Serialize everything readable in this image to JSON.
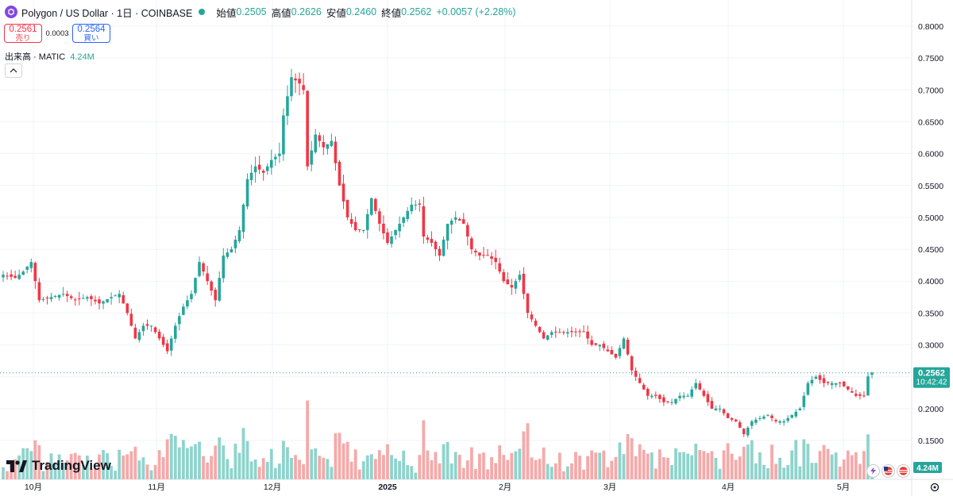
{
  "header": {
    "symbol": "Polygon / US Dollar · 1日 · COINBASE",
    "open_label": "始値",
    "open": "0.2505",
    "high_label": "高値",
    "high": "0.2626",
    "low_label": "安値",
    "low": "0.2460",
    "close_label": "終値",
    "close": "0.2562",
    "change": "+0.0057 (+2.28%)"
  },
  "trade": {
    "sell_price": "0.2561",
    "sell_label": "売り",
    "spread": "0.0003",
    "buy_price": "0.2564",
    "buy_label": "買い"
  },
  "volume_legend": {
    "label": "出来高 · MATIC",
    "value": "4.24M"
  },
  "last_price_tag": {
    "price": "0.2562",
    "countdown": "10:42:42"
  },
  "volume_tag": "4.24M",
  "logo_text": "TradingView",
  "colors": {
    "up": "#26a69a",
    "down": "#f23645",
    "vol_up": "#8fd3cc",
    "vol_down": "#f5a9a9",
    "grid": "#f0f3fa"
  },
  "chart_data": {
    "type": "candlestick",
    "timeframe": "1D",
    "y_axis": {
      "ticks": [
        "0.8000",
        "0.7500",
        "0.7000",
        "0.6500",
        "0.6000",
        "0.5500",
        "0.5000",
        "0.4500",
        "0.4000",
        "0.3500",
        "0.3000",
        "0.2500",
        "0.2000",
        "0.1500"
      ],
      "range": [
        0.13,
        0.81
      ],
      "position": "right"
    },
    "x_axis": {
      "labels": [
        "10月",
        "11月",
        "12月",
        "2025",
        "2月",
        "3月",
        "4月",
        "5月"
      ]
    },
    "price_path": [
      [
        0,
        0.41
      ],
      [
        3,
        0.405
      ],
      [
        5,
        0.415
      ],
      [
        7,
        0.43
      ],
      [
        9,
        0.37
      ],
      [
        12,
        0.375
      ],
      [
        15,
        0.38
      ],
      [
        18,
        0.37
      ],
      [
        21,
        0.375
      ],
      [
        24,
        0.365
      ],
      [
        27,
        0.375
      ],
      [
        29,
        0.38
      ],
      [
        31,
        0.35
      ],
      [
        33,
        0.31
      ],
      [
        35,
        0.33
      ],
      [
        37,
        0.33
      ],
      [
        39,
        0.31
      ],
      [
        41,
        0.29
      ],
      [
        43,
        0.33
      ],
      [
        45,
        0.36
      ],
      [
        47,
        0.38
      ],
      [
        49,
        0.43
      ],
      [
        51,
        0.4
      ],
      [
        53,
        0.37
      ],
      [
        55,
        0.44
      ],
      [
        57,
        0.45
      ],
      [
        59,
        0.48
      ],
      [
        61,
        0.56
      ],
      [
        63,
        0.58
      ],
      [
        65,
        0.57
      ],
      [
        67,
        0.59
      ],
      [
        69,
        0.6
      ],
      [
        70,
        0.66
      ],
      [
        72,
        0.72
      ],
      [
        74,
        0.71
      ],
      [
        75,
        0.7
      ],
      [
        76,
        0.58
      ],
      [
        78,
        0.63
      ],
      [
        80,
        0.61
      ],
      [
        82,
        0.62
      ],
      [
        84,
        0.55
      ],
      [
        86,
        0.5
      ],
      [
        88,
        0.48
      ],
      [
        90,
        0.48
      ],
      [
        92,
        0.53
      ],
      [
        94,
        0.49
      ],
      [
        96,
        0.46
      ],
      [
        98,
        0.48
      ],
      [
        100,
        0.5
      ],
      [
        102,
        0.52
      ],
      [
        104,
        0.52
      ],
      [
        105,
        0.47
      ],
      [
        107,
        0.46
      ],
      [
        109,
        0.44
      ],
      [
        111,
        0.49
      ],
      [
        113,
        0.5
      ],
      [
        115,
        0.49
      ],
      [
        117,
        0.45
      ],
      [
        119,
        0.44
      ],
      [
        121,
        0.44
      ],
      [
        123,
        0.43
      ],
      [
        125,
        0.4
      ],
      [
        127,
        0.39
      ],
      [
        129,
        0.41
      ],
      [
        131,
        0.35
      ],
      [
        133,
        0.33
      ],
      [
        135,
        0.31
      ],
      [
        137,
        0.32
      ],
      [
        139,
        0.32
      ],
      [
        141,
        0.32
      ],
      [
        143,
        0.32
      ],
      [
        145,
        0.32
      ],
      [
        147,
        0.3
      ],
      [
        149,
        0.3
      ],
      [
        151,
        0.29
      ],
      [
        153,
        0.28
      ],
      [
        155,
        0.31
      ],
      [
        157,
        0.26
      ],
      [
        159,
        0.24
      ],
      [
        161,
        0.22
      ],
      [
        163,
        0.22
      ],
      [
        165,
        0.21
      ],
      [
        167,
        0.21
      ],
      [
        169,
        0.22
      ],
      [
        171,
        0.22
      ],
      [
        173,
        0.24
      ],
      [
        175,
        0.22
      ],
      [
        177,
        0.2
      ],
      [
        179,
        0.2
      ],
      [
        181,
        0.185
      ],
      [
        183,
        0.18
      ],
      [
        185,
        0.16
      ],
      [
        187,
        0.18
      ],
      [
        189,
        0.185
      ],
      [
        191,
        0.19
      ],
      [
        193,
        0.18
      ],
      [
        195,
        0.18
      ],
      [
        197,
        0.19
      ],
      [
        199,
        0.2
      ],
      [
        201,
        0.24
      ],
      [
        203,
        0.25
      ],
      [
        205,
        0.24
      ],
      [
        207,
        0.24
      ],
      [
        209,
        0.24
      ],
      [
        211,
        0.23
      ],
      [
        213,
        0.22
      ],
      [
        215,
        0.22
      ],
      [
        216,
        0.2505
      ],
      [
        217,
        0.2562
      ]
    ],
    "volume_relative_range": [
      0,
      1
    ],
    "grid": true,
    "scale_note": "right price scale, volume overlay at bottom"
  }
}
